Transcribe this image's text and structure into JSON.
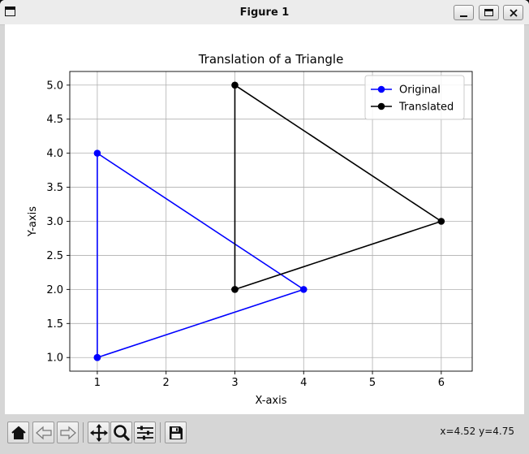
{
  "window": {
    "title": "Figure 1"
  },
  "toolbar": {
    "buttons": [
      "home-icon",
      "back-icon",
      "forward-icon",
      "pan-icon",
      "zoom-icon",
      "configure-subplots-icon",
      "save-icon"
    ],
    "coords": "x=4.52 y=4.75"
  },
  "chart_data": {
    "type": "line",
    "title": "Translation of a Triangle",
    "xlabel": "X-axis",
    "ylabel": "Y-axis",
    "xlim": [
      0.6,
      6.45
    ],
    "ylim": [
      0.8,
      5.2
    ],
    "xticks": [
      1,
      2,
      3,
      4,
      5,
      6
    ],
    "yticks": [
      1.0,
      1.5,
      2.0,
      2.5,
      3.0,
      3.5,
      4.0,
      4.5,
      5.0
    ],
    "grid": true,
    "legend_location": "upper right",
    "series": [
      {
        "name": "Original",
        "color": "#0000ff",
        "x": [
          1,
          4,
          1,
          1
        ],
        "y": [
          1,
          2,
          4,
          1
        ]
      },
      {
        "name": "Translated",
        "color": "#000000",
        "x": [
          3,
          6,
          3,
          3
        ],
        "y": [
          2,
          3,
          5,
          2
        ]
      }
    ]
  }
}
